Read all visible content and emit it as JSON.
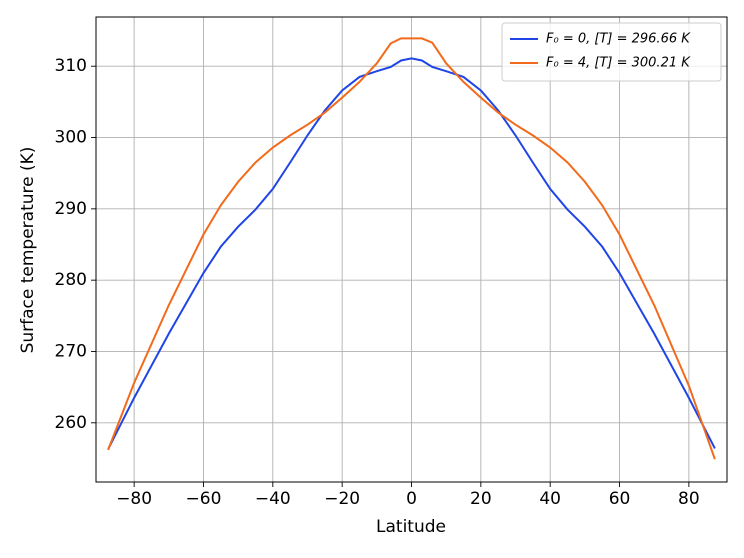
{
  "chart_data": {
    "type": "line",
    "x_label": "Latitude",
    "y_label": "Surface temperature (K)",
    "x": [
      -87.5,
      -80,
      -70,
      -60,
      -55,
      -50,
      -45,
      -40,
      -35,
      -30,
      -25,
      -20,
      -15,
      -10,
      -6,
      -3,
      0,
      3,
      6,
      10,
      15,
      20,
      25,
      30,
      35,
      40,
      45,
      50,
      55,
      60,
      70,
      80,
      87.5
    ],
    "series": [
      {
        "name": "F₀ = 0, [T] = 296.66 K",
        "color": "#1f45e6",
        "values": [
          256.3,
          263.5,
          272.5,
          281,
          284.7,
          287.5,
          289.9,
          292.8,
          296.5,
          300.3,
          303.8,
          306.6,
          308.5,
          309.3,
          309.9,
          310.8,
          311.1,
          310.8,
          309.9,
          309.3,
          308.5,
          306.6,
          303.8,
          300.3,
          296.5,
          292.8,
          289.9,
          287.5,
          284.7,
          281,
          272.5,
          263.5,
          256.4
        ]
      },
      {
        "name": "F₀ = 4, [T] = 300.21 K",
        "color": "#f26a1b",
        "values": [
          256.2,
          265.6,
          276.5,
          286.4,
          290.5,
          293.8,
          296.5,
          298.6,
          300.3,
          301.8,
          303.5,
          305.6,
          307.8,
          310.4,
          313.2,
          313.9,
          313.9,
          313.9,
          313.3,
          310.4,
          307.8,
          305.6,
          303.5,
          301.8,
          300.3,
          298.6,
          296.5,
          293.8,
          290.5,
          286.4,
          276.5,
          265.2,
          254.9
        ]
      }
    ],
    "xlim": [
      -91,
      91
    ],
    "ylim": [
      251.7,
      316.9
    ],
    "xticks": [
      {
        "value": -80,
        "label": "−80"
      },
      {
        "value": -60,
        "label": "−60"
      },
      {
        "value": -40,
        "label": "−40"
      },
      {
        "value": -20,
        "label": "−20"
      },
      0,
      20,
      40,
      60,
      80
    ],
    "yticks": [
      260,
      270,
      280,
      290,
      300,
      310
    ],
    "grid": true,
    "legend": "upper right"
  }
}
